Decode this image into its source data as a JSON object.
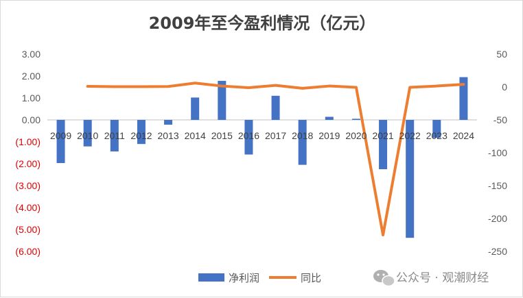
{
  "chart_data": {
    "type": "bar+line",
    "title": "2009年至今盈利情况（亿元）",
    "categories": [
      "2009",
      "2010",
      "2011",
      "2012",
      "2013",
      "2014",
      "2015",
      "2016",
      "2017",
      "2018",
      "2019",
      "2020",
      "2021",
      "2022",
      "2023",
      "2024"
    ],
    "series": [
      {
        "name": "净利润",
        "type": "bar",
        "axis": "left",
        "color": "#4472C4",
        "values": [
          -1.97,
          -1.21,
          -1.44,
          -1.1,
          -0.22,
          1.02,
          1.78,
          -1.58,
          1.1,
          -2.05,
          0.14,
          0.05,
          -2.25,
          -5.38,
          -0.82,
          1.95
        ]
      },
      {
        "name": "同比",
        "type": "line",
        "axis": "right",
        "color": "#ED7D31",
        "values": [
          null,
          1,
          0.5,
          0.5,
          0.8,
          6,
          1.5,
          -1,
          2.5,
          -2,
          1.5,
          -0.5,
          -225,
          -0.5,
          1.5,
          4
        ]
      }
    ],
    "left_axis": {
      "ylim": [
        -6,
        3
      ],
      "ticks": [
        "3.00",
        "2.00",
        "1.00",
        "0.00",
        "(1.00)",
        "(2.00)",
        "(3.00)",
        "(4.00)",
        "(5.00)",
        "(6.00)"
      ],
      "negative_color": "#E00000"
    },
    "right_axis": {
      "ylim": [
        -250,
        50
      ],
      "ticks": [
        "50",
        "0",
        "-50",
        "-100",
        "-150",
        "-200",
        "-250"
      ]
    },
    "legend": {
      "position": "bottom",
      "items": [
        "净利润",
        "同比"
      ]
    },
    "grid": false
  },
  "watermark": {
    "text": "公众号 · 观潮财经",
    "icon": "wechat-icon"
  }
}
